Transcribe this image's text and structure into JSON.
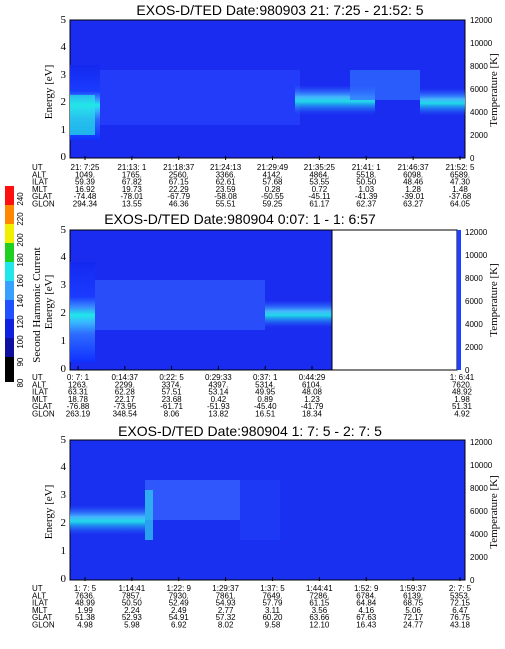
{
  "chart_data": [
    {
      "type": "heatmap",
      "title": "EXOS-D/TED   Date:980903  21: 7:25 - 21:52: 5",
      "ylabel": "Energy [eV]",
      "y2label": "Temperature [K]",
      "ylim": [
        0,
        5
      ],
      "y2lim": [
        0,
        12000
      ],
      "yticks": [
        "0",
        "1",
        "2",
        "3",
        "4",
        "5"
      ],
      "y2ticks": [
        "0",
        "2000",
        "4000",
        "6000",
        "8000",
        "10000",
        "12000"
      ],
      "table_rows": [
        "UT",
        "ALT",
        "ILAT",
        "MLT",
        "GLAT",
        "GLON"
      ],
      "table_cols": [
        [
          "21: 7:25",
          "1049.",
          "59.39",
          "16.92",
          "-74.48",
          "294.34"
        ],
        [
          "21:13: 1",
          "1765.",
          "67.82",
          "19.73",
          "-78.01",
          "13.55"
        ],
        [
          "21:18:37",
          "2560.",
          "67.15",
          "22.29",
          "-67.79",
          "46.36"
        ],
        [
          "21:24:13",
          "3366.",
          "62.61",
          "23.59",
          "-58.08",
          "55.51"
        ],
        [
          "21:29:49",
          "4142.",
          "57.68",
          "0.28",
          "-50.55",
          "59.25"
        ],
        [
          "21:35:25",
          "4864.",
          "53.55",
          "0.72",
          "-45.11",
          "61.17"
        ],
        [
          "21:41: 1",
          "5518.",
          "50.50",
          "1.03",
          "-41.39",
          "62.37"
        ],
        [
          "21:46:37",
          "6098.",
          "48.46",
          "1.28",
          "-39.01",
          "63.27"
        ],
        [
          "21:52: 5",
          "6589.",
          "47.30",
          "1.48",
          "-37.68",
          "64.05"
        ]
      ]
    },
    {
      "type": "heatmap",
      "title": "EXOS-D/TED   Date:980904  0:07: 1 - 1: 6:57",
      "ylabel": "Energy [eV]",
      "y2label": "Temperature [K]",
      "colorbar_label": "Second Harmonic Current",
      "colorbar_ticks": [
        "80",
        "90",
        "100",
        "120",
        "140",
        "160",
        "180",
        "200",
        "220",
        "240"
      ],
      "ylim": [
        0,
        5
      ],
      "y2lim": [
        0,
        12000
      ],
      "yticks": [
        "0",
        "1",
        "2",
        "3",
        "4",
        "5"
      ],
      "y2ticks": [
        "0",
        "2000",
        "4000",
        "6000",
        "8000",
        "10000",
        "12000"
      ],
      "table_rows": [
        "UT",
        "ALT",
        "ILAT",
        "MLT",
        "GLAT",
        "GLON"
      ],
      "table_cols": [
        [
          "0: 7: 1",
          "1263.",
          "63.31",
          "18.78",
          "-76.88",
          "263.19"
        ],
        [
          "0:14:37",
          "2299.",
          "62.28",
          "22.17",
          "-73.95",
          "348.54"
        ],
        [
          "0:22: 5",
          "3374.",
          "57.51",
          "23.68",
          "-61.71",
          "8.06"
        ],
        [
          "0:29:33",
          "4397.",
          "53.14",
          "0.42",
          "-51.93",
          "13.82"
        ],
        [
          "0:37: 1",
          "5314.",
          "49.95",
          "0.89",
          "-45.40",
          "16.51"
        ],
        [
          "0:44:29",
          "6104.",
          "48.08",
          "1.23",
          "-41.79",
          "18.34"
        ]
      ],
      "table_last": [
        "1: 6:41",
        "7620.",
        "48.92",
        "1.98",
        "51.31",
        "4.92"
      ]
    },
    {
      "type": "heatmap",
      "title": "EXOS-D/TED   Date:980904  1: 7: 5 - 2: 7: 5",
      "ylabel": "Energy [eV]",
      "y2label": "Temperature [K]",
      "ylim": [
        0,
        5
      ],
      "y2lim": [
        0,
        12000
      ],
      "yticks": [
        "0",
        "1",
        "2",
        "3",
        "4",
        "5"
      ],
      "y2ticks": [
        "0",
        "2000",
        "4000",
        "6000",
        "8000",
        "10000",
        "12000"
      ],
      "table_rows": [
        "UT",
        "ALT",
        "ILAT",
        "MLT",
        "GLAT",
        "GLON"
      ],
      "table_cols": [
        [
          "1: 7: 5",
          "7636.",
          "48.99",
          "1.99",
          "51.38",
          "4.98"
        ],
        [
          "1:14:41",
          "7857.",
          "50.50",
          "2.24",
          "52.93",
          "5.98"
        ],
        [
          "1:22: 9",
          "7930.",
          "52.49",
          "2.49",
          "54.91",
          "6.92"
        ],
        [
          "1:29:37",
          "7861.",
          "54.93",
          "2.77",
          "57.32",
          "8.02"
        ],
        [
          "1:37: 5",
          "7649.",
          "57.79",
          "3.11",
          "60.20",
          "9.58"
        ],
        [
          "1:44:41",
          "7286.",
          "61.15",
          "3.56",
          "63.66",
          "12.10"
        ],
        [
          "1:52: 9",
          "6784.",
          "64.84",
          "4.16",
          "67.63",
          "16.43"
        ],
        [
          "1:59:37",
          "6139.",
          "68.75",
          "5.06",
          "72.17",
          "24.77"
        ],
        [
          "2: 7: 5",
          "5353.",
          "72.15",
          "6.47",
          "76.75",
          "43.18"
        ]
      ]
    }
  ]
}
